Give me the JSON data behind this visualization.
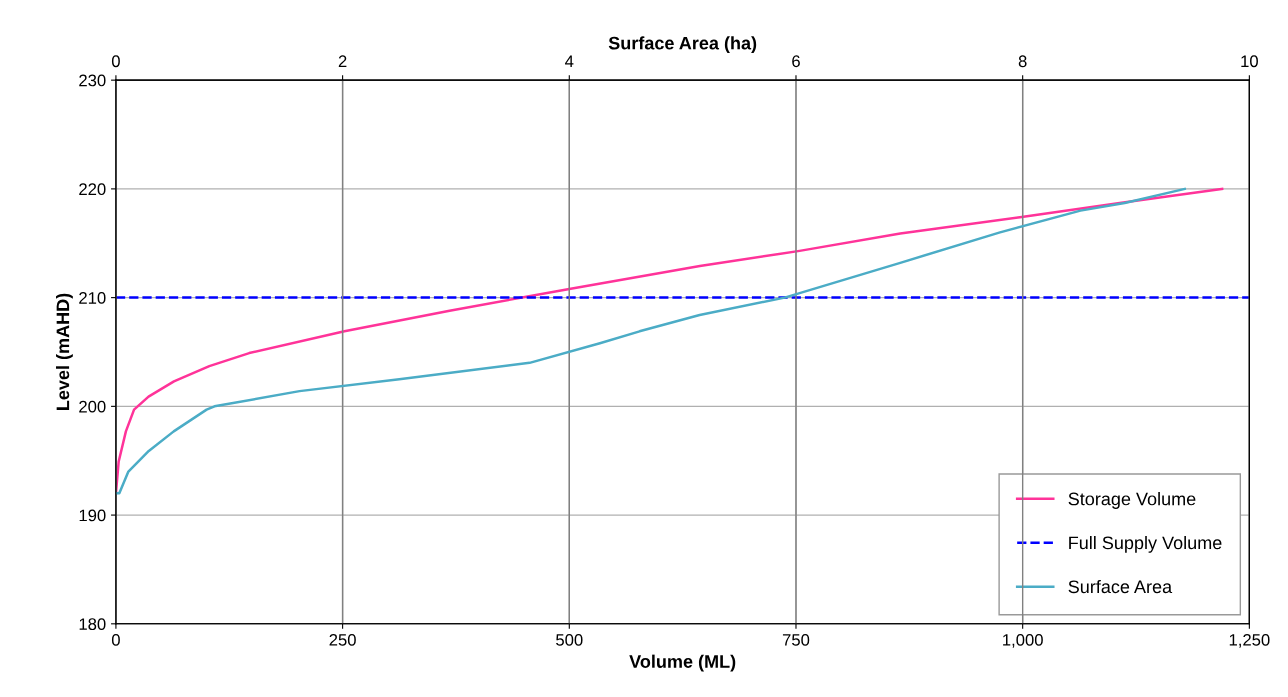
{
  "chart_data": {
    "type": "line",
    "xlabel": "Volume (ML)",
    "x2label": "Surface Area (ha)",
    "ylabel": "Level (mAHD)",
    "xlim": [
      0,
      1250
    ],
    "xticks": [
      0,
      250,
      500,
      750,
      {
        "value": 1000,
        "label": "1,000"
      },
      {
        "value": 1250,
        "label": "1,250"
      }
    ],
    "x2lim": [
      0,
      10
    ],
    "x2ticks": [
      0,
      2,
      4,
      6,
      8,
      10
    ],
    "ylim": [
      180,
      230
    ],
    "yticks": [
      180,
      190,
      200,
      210,
      220,
      230
    ],
    "grid": true,
    "legend": "bottom right",
    "marker": "none",
    "line_style": "solid",
    "series": [
      {
        "name": "Storage Volume",
        "color": "#ff3399",
        "x": [
          0,
          3,
          11,
          20,
          36,
          64,
          103,
          147,
          252,
          368,
          500,
          644,
          754,
          865,
          997,
          1107,
          1220
        ],
        "values": [
          192,
          194.9,
          197.7,
          199.7,
          200.9,
          202.3,
          203.7,
          204.9,
          206.9,
          208.8,
          210.8,
          212.9,
          214.3,
          215.9,
          217.4,
          218.7,
          220
        ]
      },
      {
        "name": "Surface Area",
        "color": "#4bacc6",
        "axis": "x2",
        "x": [
          0,
          0.03,
          0.11,
          0.29,
          0.51,
          0.8,
          0.87,
          1.62,
          2.5,
          3.65,
          4.27,
          4.62,
          5.15,
          5.9,
          6.92,
          7.8,
          8.51,
          8.9,
          9.43
        ],
        "values": [
          192,
          192,
          194,
          195.9,
          197.7,
          199.7,
          200,
          201.4,
          202.5,
          204,
          205.8,
          206.9,
          208.4,
          210,
          213.2,
          216,
          218,
          218.7,
          220
        ]
      }
    ],
    "ref_lines": [
      {
        "axis": "y",
        "value": 210,
        "label": "Full Supply Volume",
        "color": "#0000ff",
        "line_style": "dashed"
      }
    ]
  }
}
